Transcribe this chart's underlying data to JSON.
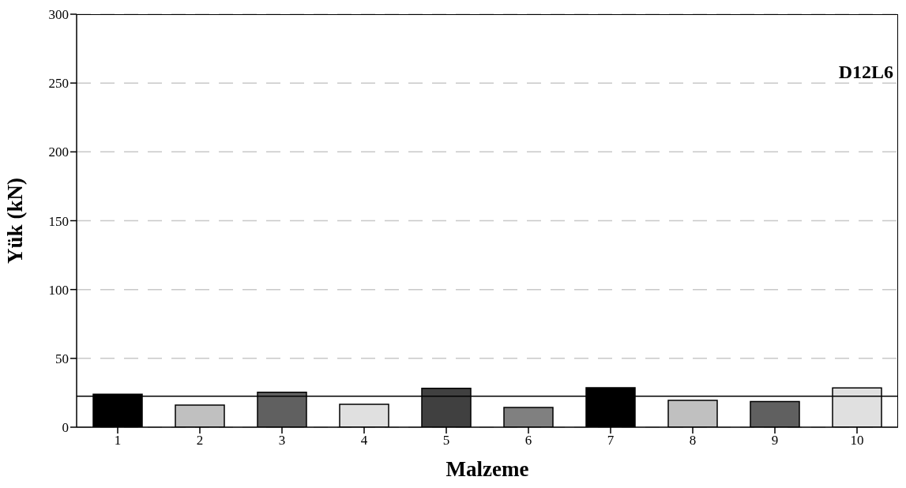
{
  "chart_data": {
    "type": "bar",
    "xlabel": "Malzeme",
    "ylabel": "Yük (kN)",
    "annotations": [
      "D12L6"
    ],
    "categories": [
      "1",
      "2",
      "3",
      "4",
      "5",
      "6",
      "7",
      "8",
      "9",
      "10"
    ],
    "values": [
      24,
      16,
      25.4,
      16.7,
      28.3,
      14.4,
      28.7,
      19.5,
      18.7,
      28.5
    ],
    "colors": [
      "#000000",
      "#c0c0c0",
      "#606060",
      "#e0e0e0",
      "#404040",
      "#808080",
      "#000000",
      "#c0c0c0",
      "#606060",
      "#e0e0e0"
    ],
    "ylim": [
      0,
      300
    ],
    "yticks": [
      0,
      50,
      100,
      150,
      200,
      250,
      300
    ],
    "grid": "y",
    "ref_lines": [
      {
        "axis": "y",
        "value": 22.5,
        "color": "#000000",
        "line_style": "solid"
      }
    ]
  }
}
